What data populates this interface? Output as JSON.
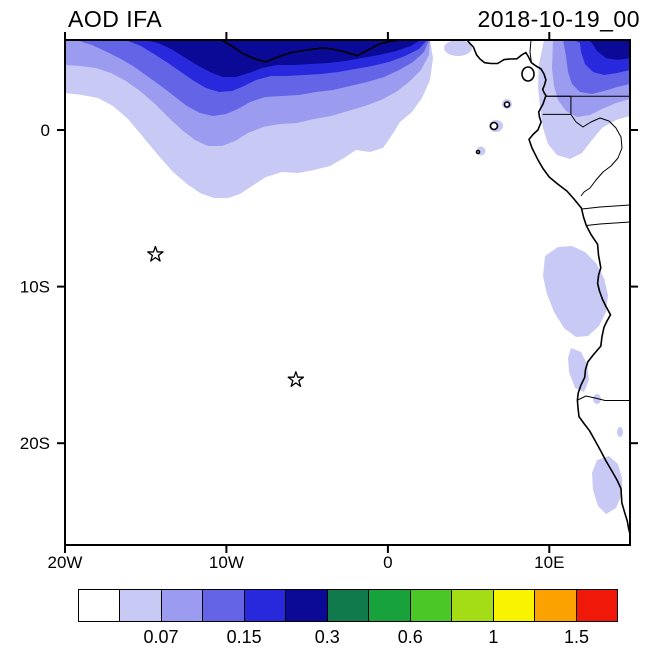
{
  "header": {
    "title": "AOD IFA",
    "datetime": "2018-10-19_00"
  },
  "chart_data": {
    "type": "heatmap",
    "title": "AOD IFA",
    "time_label": "2018-10-19_00",
    "variable": "Aerosol Optical Depth (AOD)",
    "projection": "lat-lon map, West Africa / South-East Atlantic",
    "lon_range": [
      -20,
      15
    ],
    "lat_range": [
      -26.5,
      5.75
    ],
    "x_tick_labels": [
      "20W",
      "10W",
      "0",
      "10E"
    ],
    "x_tick_lons": [
      -20,
      -10,
      0,
      10
    ],
    "y_tick_labels": [
      "0",
      "10S",
      "20S"
    ],
    "y_tick_lats": [
      0,
      -10,
      -20
    ],
    "grid": false,
    "colorbar": {
      "orientation": "horizontal",
      "colors": [
        "#ffffff",
        "#c9c9f5",
        "#9b9bf0",
        "#6464e6",
        "#2828dc",
        "#0a0a96",
        "#107a4d",
        "#18a23c",
        "#4cc728",
        "#a4dd16",
        "#f8f400",
        "#fba200",
        "#f01808"
      ],
      "tick_labels": [
        "0.07",
        "0.15",
        "0.3",
        "0.6",
        "1",
        "1.5"
      ],
      "label_boundary_indices": [
        2,
        4,
        6,
        8,
        10,
        12
      ]
    },
    "markers": [
      {
        "type": "star",
        "lon": -14.4,
        "lat": -7.95
      },
      {
        "type": "star",
        "lon": -5.7,
        "lat": -15.95
      }
    ],
    "field_summary": [
      {
        "region": "zonal plume along 0-5.75N from 20W to 15E",
        "aod_range": "0.05-0.3, darkest (0.2-0.3) hugging the top edge 18W-2E and at far right"
      },
      {
        "region": "Niger delta / 3E-9E near coast",
        "aod_range": "< 0.05 (clear gap)"
      },
      {
        "region": "Gabon / Congo coast land",
        "aod_range": "0.05-0.1"
      },
      {
        "region": "Angola coast 8S-13S",
        "aod_range": "0.05-0.07"
      },
      {
        "region": "Angola coast 15S-17S",
        "aod_range": "0.05-0.07 small patch"
      },
      {
        "region": "Namibia coast 21S-25S",
        "aod_range": "0.05-0.07 small patch"
      },
      {
        "region": "remainder of domain",
        "aod_range": "< 0.05"
      }
    ]
  }
}
